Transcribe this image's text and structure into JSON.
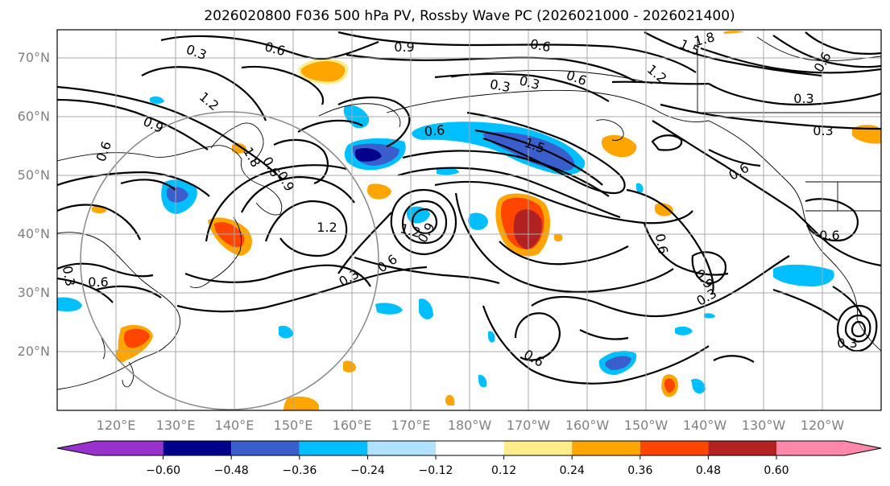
{
  "map": {
    "title": "2026020800 F036 500 hPa PV, Rossby Wave PC (2026021000 - 2026021400)",
    "lat_labels": [
      "70°N",
      "60°N",
      "50°N",
      "40°N",
      "30°N",
      "20°N"
    ],
    "lon_labels": [
      "120°E",
      "130°E",
      "140°E",
      "150°E",
      "160°E",
      "170°E",
      "180°W",
      "170°W",
      "160°W",
      "150°W",
      "140°W",
      "130°W",
      "120°W"
    ],
    "contour_labels": [
      "0.3",
      "0.6",
      "0.9",
      "0.6",
      "1.5",
      "1.8",
      "1.2",
      "0.6",
      "0.3",
      "0.6",
      "0.3",
      "0.3",
      "1.2",
      "0.6",
      "0.9",
      "1.8",
      "0.6",
      "1.2",
      "0.9",
      "1.2",
      "1.5",
      "0.9",
      "0.6",
      "0.3",
      "0.6",
      "0.6",
      "0.9",
      "0.3",
      "0.6",
      "0.3",
      "0.6",
      "0.6",
      "0.6",
      "0.3",
      "0.3"
    ],
    "colorbar": {
      "ticks": [
        "−0.60",
        "−0.48",
        "−0.36",
        "−0.24",
        "−0.12",
        "0.12",
        "0.24",
        "0.36",
        "0.48",
        "0.60"
      ],
      "colors": [
        "#9932cc",
        "#00008b",
        "#3a5fcd",
        "#00bfff",
        "#b0e2ff",
        "#ffffff",
        "#ffec8b",
        "#ffa500",
        "#ff4500",
        "#b22222",
        "#ff88aa"
      ]
    }
  }
}
